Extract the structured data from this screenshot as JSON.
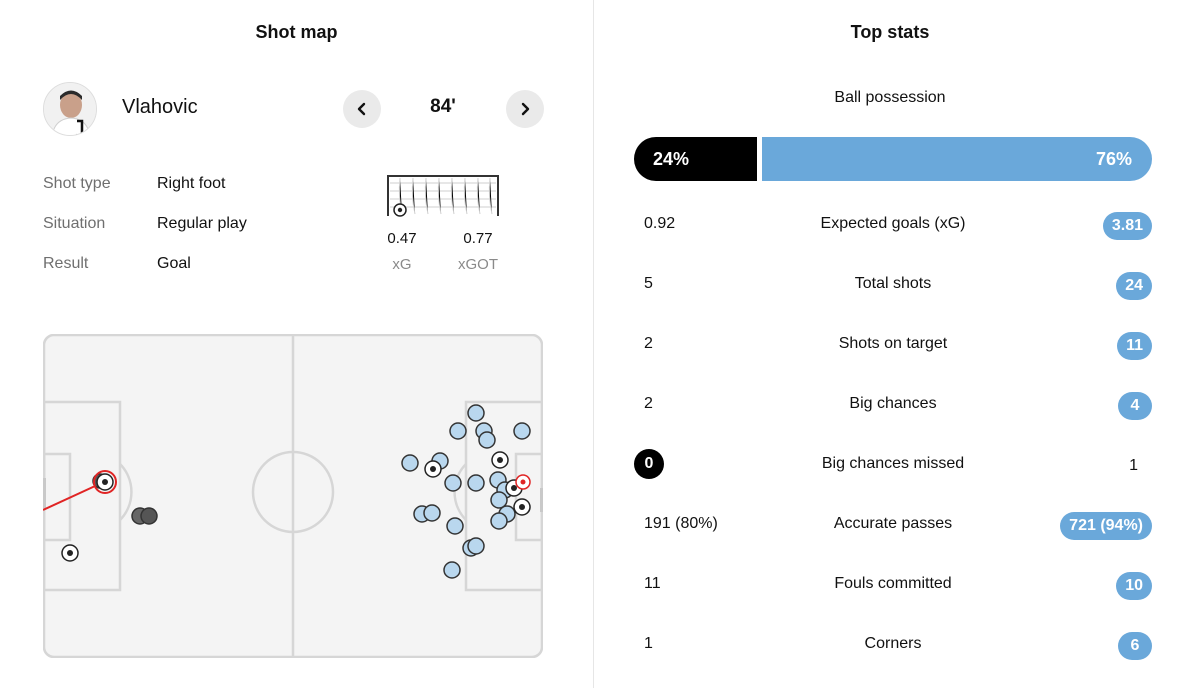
{
  "shot_map": {
    "title": "Shot map",
    "player": {
      "name": "Vlahovic"
    },
    "minute": "84'",
    "nav": {
      "prev_icon": "chevron-left-icon",
      "next_icon": "chevron-right-icon"
    },
    "details": [
      {
        "label": "Shot type",
        "value": "Right foot"
      },
      {
        "label": "Situation",
        "value": "Regular play"
      },
      {
        "label": "Result",
        "value": "Goal"
      }
    ],
    "xg": {
      "value": "0.47",
      "label": "xG"
    },
    "xgot": {
      "value": "0.77",
      "label": "xGOT"
    }
  },
  "top_stats": {
    "title": "Top stats",
    "possession": {
      "label": "Ball possession",
      "home": "24%",
      "away": "76%",
      "home_fraction": 0.24
    },
    "rows": [
      {
        "name": "Expected goals (xG)",
        "home": "0.92",
        "away": "3.81",
        "highlight": "away"
      },
      {
        "name": "Total shots",
        "home": "5",
        "away": "24",
        "highlight": "away"
      },
      {
        "name": "Shots on target",
        "home": "2",
        "away": "11",
        "highlight": "away"
      },
      {
        "name": "Big chances",
        "home": "2",
        "away": "4",
        "highlight": "away"
      },
      {
        "name": "Big chances missed",
        "home": "0",
        "away": "1",
        "highlight": "home"
      },
      {
        "name": "Accurate passes",
        "home": "191 (80%)",
        "away": "721 (94%)",
        "highlight": "away"
      },
      {
        "name": "Fouls committed",
        "home": "11",
        "away": "10",
        "highlight": "away"
      },
      {
        "name": "Corners",
        "home": "1",
        "away": "6",
        "highlight": "away"
      }
    ]
  },
  "colors": {
    "home": "#000000",
    "away": "#6aa8da",
    "away_shot_fill": "#b9d7ee",
    "home_shot_fill": "#555555",
    "selected_shot": "#e02424",
    "pitch_bg": "#f4f4f4",
    "pitch_line": "#d6d6d6"
  }
}
